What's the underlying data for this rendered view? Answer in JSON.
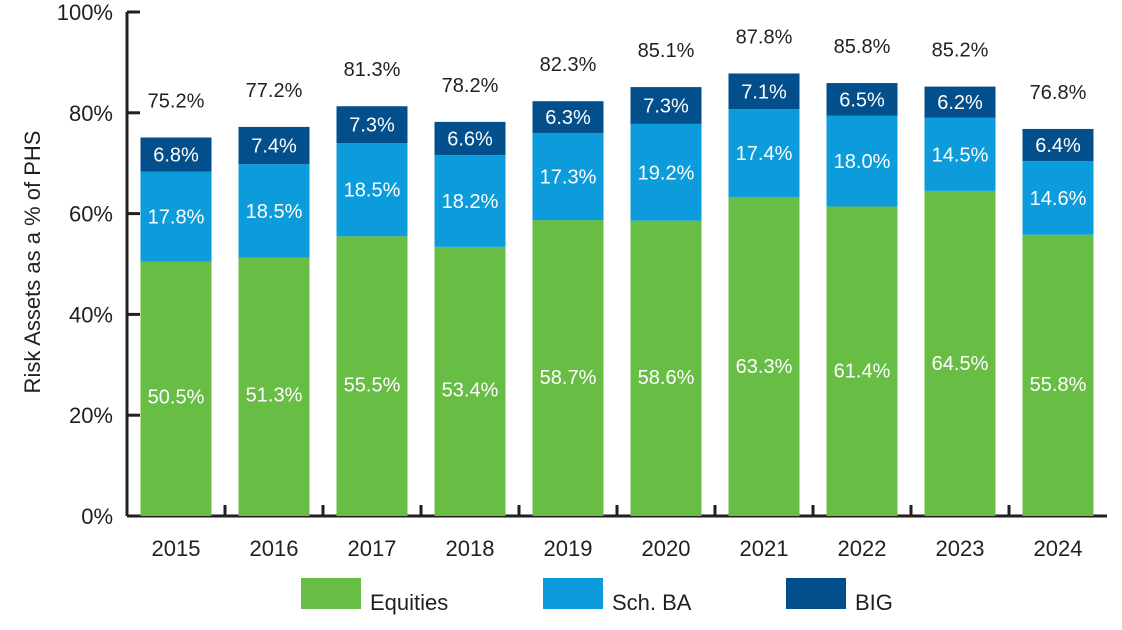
{
  "chart_data": {
    "type": "bar",
    "stacked": true,
    "title": "",
    "xlabel": "",
    "ylabel": "Risk Assets as a % of PHS",
    "ylim": [
      0,
      100
    ],
    "yticks": [
      0,
      20,
      40,
      60,
      80,
      100
    ],
    "ytick_labels": [
      "0%",
      "20%",
      "40%",
      "60%",
      "80%",
      "100%"
    ],
    "categories": [
      "2015",
      "2016",
      "2017",
      "2018",
      "2019",
      "2020",
      "2021",
      "2022",
      "2023",
      "2024"
    ],
    "series": [
      {
        "name": "Equities",
        "color": "#68bd45",
        "values": [
          50.5,
          51.3,
          55.5,
          53.4,
          58.7,
          58.6,
          63.3,
          61.4,
          64.5,
          55.8
        ],
        "labels": [
          "50.5%",
          "51.3%",
          "55.5%",
          "53.4%",
          "58.7%",
          "58.6%",
          "63.3%",
          "61.4%",
          "64.5%",
          "55.8%"
        ]
      },
      {
        "name": "Sch. BA",
        "color": "#0c9cdb",
        "values": [
          17.8,
          18.5,
          18.5,
          18.2,
          17.3,
          19.2,
          17.4,
          18.0,
          14.5,
          14.6
        ],
        "labels": [
          "17.8%",
          "18.5%",
          "18.5%",
          "18.2%",
          "17.3%",
          "19.2%",
          "17.4%",
          "18.0%",
          "14.5%",
          "14.6%"
        ]
      },
      {
        "name": "BIG",
        "color": "#034f8c",
        "values": [
          6.8,
          7.4,
          7.3,
          6.6,
          6.3,
          7.3,
          7.1,
          6.5,
          6.2,
          6.4
        ],
        "labels": [
          "6.8%",
          "7.4%",
          "7.3%",
          "6.6%",
          "6.3%",
          "7.3%",
          "7.1%",
          "6.5%",
          "6.2%",
          "6.4%"
        ]
      }
    ],
    "totals": [
      75.2,
      77.2,
      81.3,
      78.2,
      82.3,
      85.1,
      87.8,
      85.8,
      85.2,
      76.8
    ],
    "total_labels": [
      "75.2%",
      "77.2%",
      "81.3%",
      "78.2%",
      "82.3%",
      "85.1%",
      "87.8%",
      "85.8%",
      "85.2%",
      "76.8%"
    ],
    "legend": [
      "Equities",
      "Sch. BA",
      "BIG"
    ],
    "legend_position": "bottom",
    "grid": false
  }
}
